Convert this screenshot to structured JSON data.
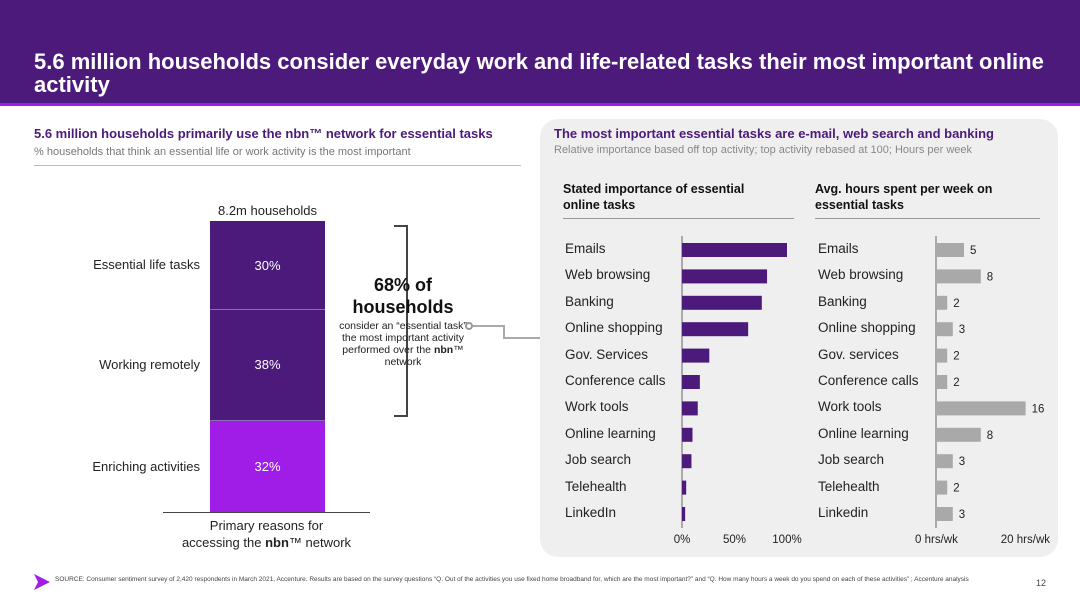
{
  "header": {
    "title": "5.6 million households consider everyday work and life-related tasks their most important online activity"
  },
  "left": {
    "title": "5.6 million households primarily use the nbn™ network for essential tasks",
    "subtitle": "% households that think an essential life or work activity is the most important",
    "total_label": "8.2m households",
    "caption_line1": "Primary reasons for",
    "caption_line2_pre": "accessing the ",
    "caption_line2_brand": "nbn",
    "caption_line2_post": "™ network"
  },
  "callout": {
    "big_line1": "68% of",
    "big_line2": "households",
    "small_pre": "consider an “essential task” the most important activity performed over the ",
    "small_brand": "nbn",
    "small_post": "™ network"
  },
  "right": {
    "title": "The most important essential tasks are e-mail, web search and banking",
    "subtitle": "Relative importance based off top activity; top activity rebased at 100; Hours per week",
    "importance_title": "Stated importance of essential online tasks",
    "hours_title": "Avg. hours spent per week on essential tasks"
  },
  "chart_data": [
    {
      "type": "bar",
      "stacked": true,
      "title": "8.2m households",
      "xlabel": "Primary reasons for accessing the nbn™ network",
      "categories": [
        "Essential life tasks",
        "Working remotely",
        "Enriching activities"
      ],
      "values": [
        30,
        38,
        32
      ],
      "value_labels": [
        "30%",
        "38%",
        "32%"
      ],
      "colors": [
        "#4b1a7a",
        "#4b1a7a",
        "#a01de8"
      ]
    },
    {
      "type": "bar",
      "orientation": "horizontal",
      "title": "Stated importance of essential online tasks",
      "categories": [
        "Emails",
        "Web browsing",
        "Banking",
        "Online shopping",
        "Gov. Services",
        "Conference calls",
        "Work tools",
        "Online learning",
        "Job search",
        "Telehealth",
        "LinkedIn"
      ],
      "values": [
        100,
        81,
        76,
        63,
        26,
        17,
        15,
        10,
        9,
        4,
        3
      ],
      "xlim": [
        0,
        100
      ],
      "ticks": [
        "0%",
        "50%",
        "100%"
      ],
      "color": "#4b1a7a"
    },
    {
      "type": "bar",
      "orientation": "horizontal",
      "title": "Avg. hours spent per week on essential tasks",
      "categories": [
        "Emails",
        "Web browsing",
        "Banking",
        "Online shopping",
        "Gov. services",
        "Conference calls",
        "Work tools",
        "Online learning",
        "Job search",
        "Telehealth",
        "Linkedin"
      ],
      "values": [
        5,
        8,
        2,
        3,
        2,
        2,
        16,
        8,
        3,
        2,
        3
      ],
      "xlim": [
        0,
        20
      ],
      "ticks": [
        "0 hrs/wk",
        "20 hrs/wk"
      ],
      "color": "#a9a9a9"
    }
  ],
  "footer": {
    "source": "SOURCE: Consumer sentiment survey of 2,420 respondents in March 2021, Accenture. Results are based on the survey questions “Q. Out of the activities you use fixed home broadband for, which are the most important?” and “Q. How many hours a week do you spend on each of these activities” ; Accenture analysis",
    "page_number": "12"
  },
  "colors": {
    "brand_purple": "#4b1a7a",
    "accent_purple": "#a01de8",
    "grey_bar": "#a9a9a9",
    "panel_bg": "#efefef"
  }
}
